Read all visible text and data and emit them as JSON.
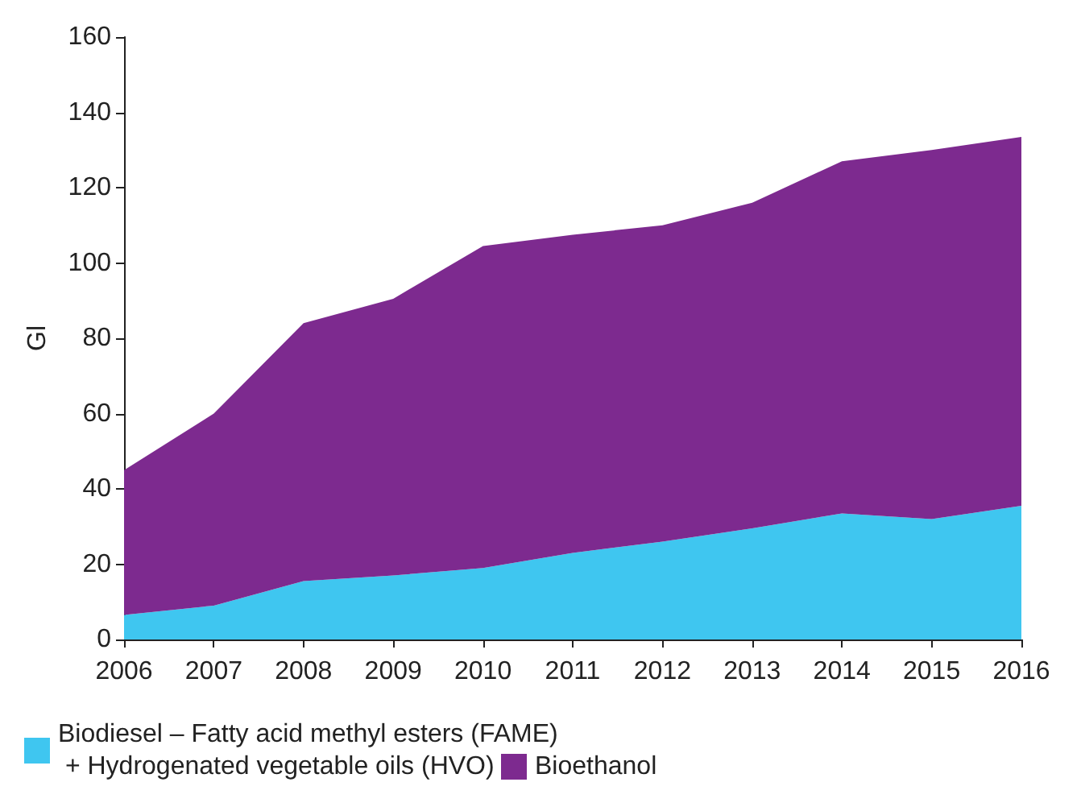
{
  "chart_data": {
    "type": "area",
    "stacked": true,
    "ylabel": "Gl",
    "categories": [
      "2006",
      "2007",
      "2008",
      "2009",
      "2010",
      "2011",
      "2012",
      "2013",
      "2014",
      "2015",
      "2016"
    ],
    "series": [
      {
        "name": "Biodiesel – Fatty acid methyl esters (FAME) + Hydrogenated vegetable oils (HVO)",
        "color": "#3fc6f0",
        "values": [
          6.5,
          9,
          15.5,
          17,
          19,
          23,
          26,
          29.5,
          33.5,
          32,
          35.5
        ]
      },
      {
        "name": "Bioethanol",
        "color": "#7d2a8f",
        "values": [
          38.5,
          51,
          68.5,
          73.5,
          85.5,
          84.5,
          84,
          86.5,
          93.5,
          98,
          98
        ]
      }
    ],
    "ylim": [
      0,
      160
    ],
    "yticks": [
      0,
      20,
      40,
      60,
      80,
      100,
      120,
      140,
      160
    ],
    "grid": false,
    "legend": "bottom",
    "marker": "none"
  }
}
